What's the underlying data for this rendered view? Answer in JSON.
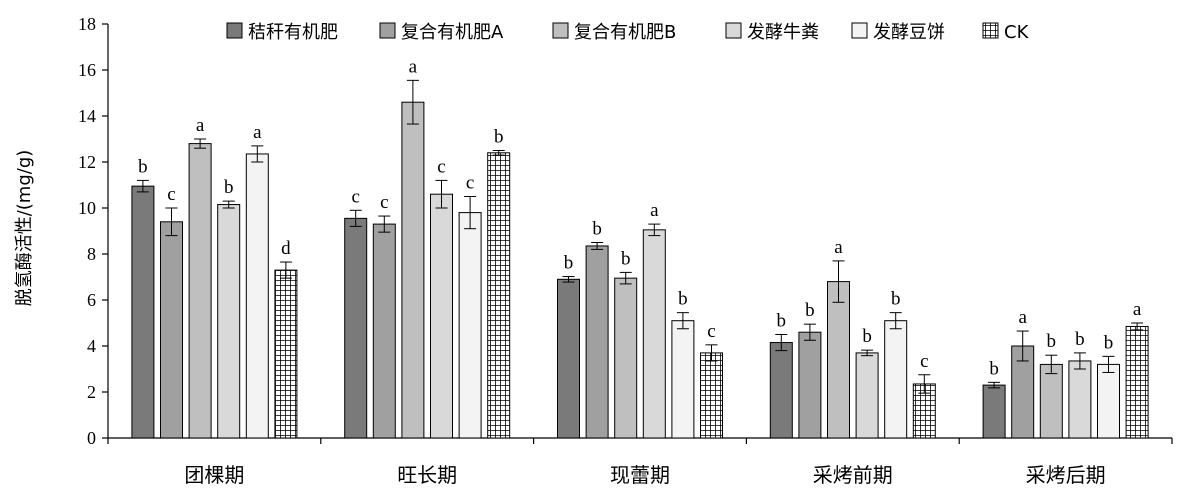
{
  "chart_data": {
    "type": "bar",
    "ylabel": "脱氢酶活性/(mg/g)",
    "xlabel": "",
    "ylim": [
      0,
      18
    ],
    "yticks": [
      0,
      2,
      4,
      6,
      8,
      10,
      12,
      14,
      16,
      18
    ],
    "categories": [
      "团棵期",
      "旺长期",
      "现蕾期",
      "采烤前期",
      "采烤后期"
    ],
    "legend_position": "top",
    "series": [
      {
        "name": "秸秆有机肥",
        "color": "#7a7a7a",
        "pattern": "solid",
        "values": [
          10.95,
          9.55,
          6.9,
          4.15,
          2.3
        ],
        "errors": [
          0.25,
          0.35,
          0.12,
          0.35,
          0.12
        ],
        "labels": [
          "b",
          "c",
          "b",
          "b",
          "b"
        ]
      },
      {
        "name": "复合有机肥A",
        "color": "#a0a0a0",
        "pattern": "solid",
        "values": [
          9.4,
          9.3,
          8.35,
          4.6,
          4.0
        ],
        "errors": [
          0.6,
          0.35,
          0.15,
          0.35,
          0.65
        ],
        "labels": [
          "c",
          "c",
          "b",
          "b",
          "a"
        ]
      },
      {
        "name": "复合有机肥B",
        "color": "#bfbfbf",
        "pattern": "solid",
        "values": [
          12.8,
          14.6,
          6.95,
          6.8,
          3.2
        ],
        "errors": [
          0.2,
          0.95,
          0.25,
          0.9,
          0.4
        ],
        "labels": [
          "a",
          "a",
          "b",
          "a",
          "b"
        ]
      },
      {
        "name": "发酵牛粪",
        "color": "#d9d9d9",
        "pattern": "solid",
        "values": [
          10.15,
          10.6,
          9.05,
          3.7,
          3.35
        ],
        "errors": [
          0.15,
          0.6,
          0.25,
          0.12,
          0.35
        ],
        "labels": [
          "b",
          "c",
          "a",
          "b",
          "b"
        ]
      },
      {
        "name": "发酵豆饼",
        "color": "#f3f3f3",
        "pattern": "solid",
        "values": [
          12.35,
          9.8,
          5.1,
          5.1,
          3.2
        ],
        "errors": [
          0.35,
          0.7,
          0.35,
          0.35,
          0.35
        ],
        "labels": [
          "a",
          "c",
          "b",
          "b",
          "b"
        ]
      },
      {
        "name": "CK",
        "color": "#ffffff",
        "pattern": "grid",
        "values": [
          7.3,
          12.4,
          3.7,
          2.35,
          4.85
        ],
        "errors": [
          0.35,
          0.1,
          0.35,
          0.4,
          0.15
        ],
        "labels": [
          "d",
          "b",
          "c",
          "c",
          "a"
        ]
      }
    ]
  }
}
